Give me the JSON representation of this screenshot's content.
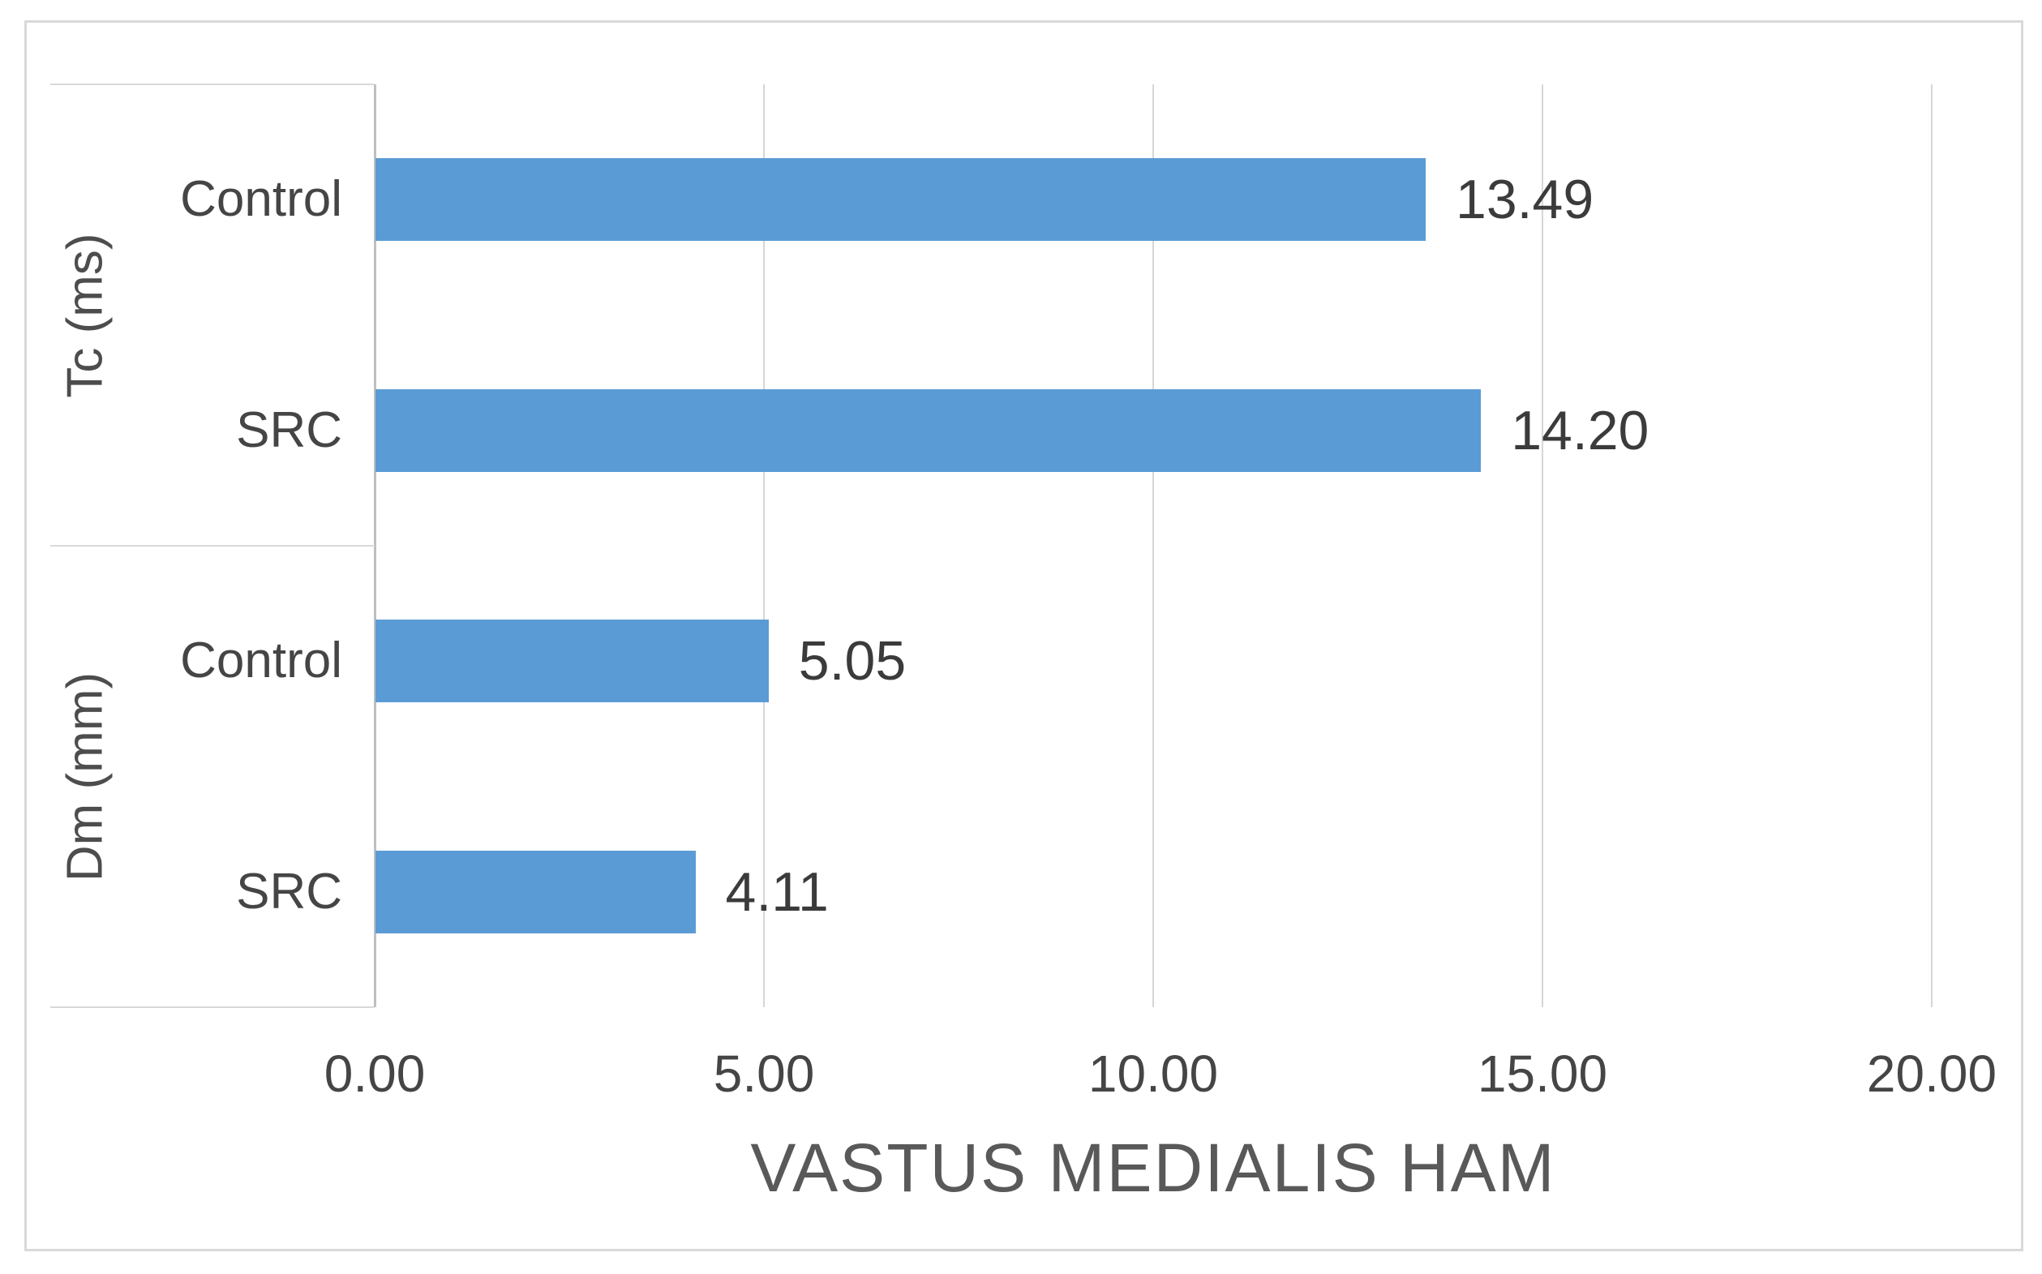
{
  "chart_data": {
    "type": "bar",
    "orientation": "horizontal",
    "xlabel": "VASTUS MEDIALIS HAM",
    "xlim": [
      0,
      20
    ],
    "grid": true,
    "bar_color": "#5B9BD5",
    "x_ticks": [
      {
        "value": 0,
        "label": "0.00"
      },
      {
        "value": 5,
        "label": "5.00"
      },
      {
        "value": 10,
        "label": "10.00"
      },
      {
        "value": 15,
        "label": "15.00"
      },
      {
        "value": 20,
        "label": "20.00"
      }
    ],
    "groups": [
      {
        "label": "Tc (ms)",
        "bars": [
          {
            "category": "Control",
            "value": 13.49,
            "value_label": "13.49"
          },
          {
            "category": "SRC",
            "value": 14.2,
            "value_label": "14.20"
          }
        ]
      },
      {
        "label": "Dm (mm)",
        "bars": [
          {
            "category": "Control",
            "value": 5.05,
            "value_label": "5.05"
          },
          {
            "category": "SRC",
            "value": 4.11,
            "value_label": "4.11"
          }
        ]
      }
    ]
  }
}
